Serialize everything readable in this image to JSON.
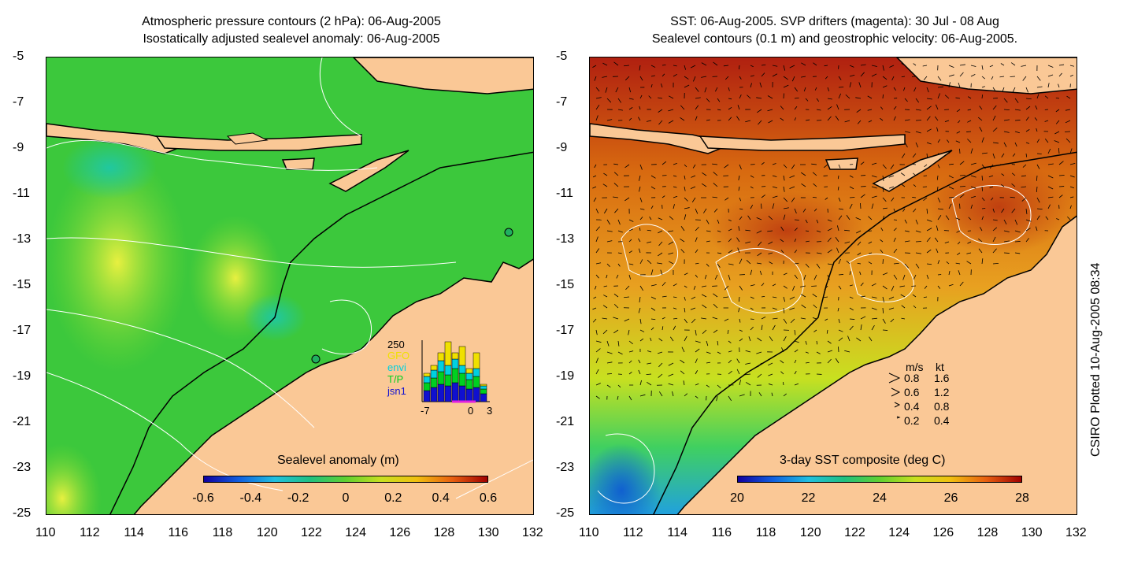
{
  "left_panel": {
    "title_line1": "Atmospheric pressure contours (2 hPa): 06-Aug-2005",
    "title_line2": "Isostatically adjusted sealevel anomaly: 06-Aug-2005",
    "colorbar_title": "Sealevel anomaly (m)",
    "colorbar_ticks": [
      "-0.6",
      "-0.4",
      "-0.2",
      "0",
      "0.2",
      "0.4",
      "0.6"
    ],
    "histogram": {
      "ymax_label": "250",
      "sources": [
        {
          "label": "GFO",
          "color": "#f0e000"
        },
        {
          "label": "envi",
          "color": "#00d0e0"
        },
        {
          "label": "T/P",
          "color": "#00d020"
        },
        {
          "label": "jsn1",
          "color": "#1010d0"
        }
      ],
      "x_ticks": [
        "-7",
        "0",
        "3"
      ]
    }
  },
  "right_panel": {
    "title_line1": "SST: 06-Aug-2005. SVP drifters (magenta): 30 Jul - 08 Aug",
    "title_line2": "Sealevel contours (0.1 m) and geostrophic velocity: 06-Aug-2005.",
    "colorbar_title": "3-day SST composite (deg C)",
    "colorbar_ticks": [
      "20",
      "22",
      "24",
      "26",
      "28"
    ],
    "velocity_legend": {
      "header_ms": "m/s",
      "header_kt": "kt",
      "rows": [
        {
          "ms": "0.8",
          "kt": "1.6"
        },
        {
          "ms": "0.6",
          "kt": "1.2"
        },
        {
          "ms": "0.4",
          "kt": "0.8"
        },
        {
          "ms": "0.2",
          "kt": "0.4"
        }
      ]
    }
  },
  "stamp": "CSIRO Plotted 10-Aug-2005 08:34",
  "chart_data": [
    {
      "type": "heatmap",
      "title": "Isostatically adjusted sealevel anomaly: 06-Aug-2005",
      "xlabel": "",
      "ylabel": "",
      "x_ticks": [
        "110",
        "112",
        "114",
        "116",
        "118",
        "120",
        "122",
        "124",
        "126",
        "128",
        "130",
        "132"
      ],
      "y_ticks": [
        "-5",
        "-7",
        "-9",
        "-11",
        "-13",
        "-15",
        "-17",
        "-19",
        "-21",
        "-23",
        "-25"
      ],
      "xlim": [
        110,
        132
      ],
      "ylim": [
        -25,
        -5
      ],
      "colorbar": {
        "label": "Sealevel anomaly (m)",
        "min": -0.6,
        "max": 0.6,
        "ticks": [
          -0.6,
          -0.4,
          -0.2,
          0,
          0.2,
          0.4,
          0.6
        ]
      },
      "histogram": {
        "xlim": [
          -7,
          3
        ],
        "ymax": 250
      }
    },
    {
      "type": "heatmap",
      "title": "SST: 06-Aug-2005. SVP drifters (magenta): 30 Jul - 08 Aug",
      "xlabel": "",
      "ylabel": "",
      "x_ticks": [
        "110",
        "112",
        "114",
        "116",
        "118",
        "120",
        "122",
        "124",
        "126",
        "128",
        "130",
        "132"
      ],
      "y_ticks": [
        "-5",
        "-7",
        "-9",
        "-11",
        "-13",
        "-15",
        "-17",
        "-19",
        "-21",
        "-23",
        "-25"
      ],
      "xlim": [
        110,
        132
      ],
      "ylim": [
        -25,
        -5
      ],
      "colorbar": {
        "label": "3-day SST composite (deg C)",
        "min": 20,
        "max": 28,
        "ticks": [
          20,
          22,
          24,
          26,
          28
        ]
      },
      "velocity_scale": [
        {
          "ms": 0.8,
          "kt": 1.6
        },
        {
          "ms": 0.6,
          "kt": 1.2
        },
        {
          "ms": 0.4,
          "kt": 0.8
        },
        {
          "ms": 0.2,
          "kt": 0.4
        }
      ]
    }
  ]
}
